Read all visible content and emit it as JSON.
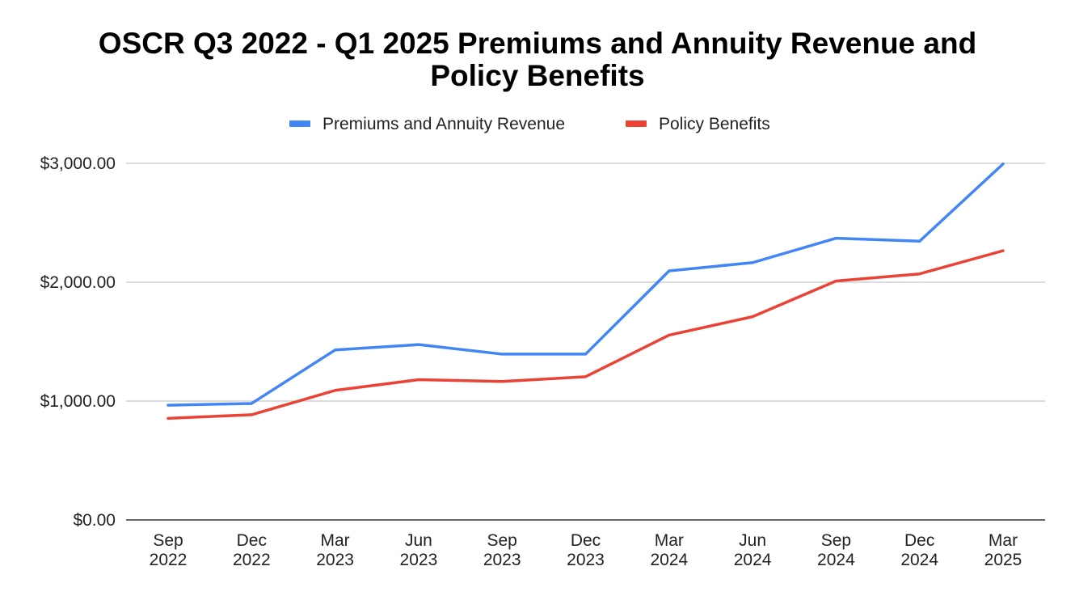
{
  "chart_data": {
    "type": "line",
    "title_line1": "OSCR Q3 2022 - Q1 2025 Premiums and Annuity Revenue and",
    "title_line2": "Policy Benefits",
    "xlabel": "",
    "ylabel": "",
    "categories": [
      [
        "Sep",
        "2022"
      ],
      [
        "Dec",
        "2022"
      ],
      [
        "Mar",
        "2023"
      ],
      [
        "Jun",
        "2023"
      ],
      [
        "Sep",
        "2023"
      ],
      [
        "Dec",
        "2023"
      ],
      [
        "Mar",
        "2024"
      ],
      [
        "Jun",
        "2024"
      ],
      [
        "Sep",
        "2024"
      ],
      [
        "Dec",
        "2024"
      ],
      [
        "Mar",
        "2025"
      ]
    ],
    "ylim": [
      0,
      3000
    ],
    "yticks": [
      0,
      1000,
      2000,
      3000
    ],
    "ytick_labels": [
      "$0.00",
      "$1,000.00",
      "$2,000.00",
      "$3,000.00"
    ],
    "grid": true,
    "legend_position": "top-center",
    "series": [
      {
        "name": "Premiums and Annuity Revenue",
        "color": "#4285f4",
        "values": [
          965,
          980,
          1430,
          1475,
          1395,
          1395,
          2095,
          2165,
          2370,
          2345,
          2995
        ]
      },
      {
        "name": "Policy Benefits",
        "color": "#ea4335",
        "values": [
          855,
          885,
          1090,
          1180,
          1165,
          1205,
          1555,
          1710,
          2010,
          2070,
          2265
        ]
      }
    ]
  }
}
